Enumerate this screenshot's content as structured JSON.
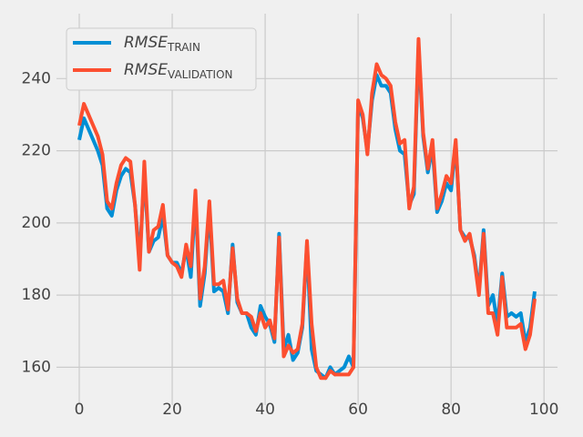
{
  "chart_data": {
    "type": "line",
    "x": [
      0,
      1,
      2,
      3,
      4,
      5,
      6,
      7,
      8,
      9,
      10,
      11,
      12,
      13,
      14,
      15,
      16,
      17,
      18,
      19,
      20,
      21,
      22,
      23,
      24,
      25,
      26,
      27,
      28,
      29,
      30,
      31,
      32,
      33,
      34,
      35,
      36,
      37,
      38,
      39,
      40,
      41,
      42,
      43,
      44,
      45,
      46,
      47,
      48,
      49,
      50,
      51,
      52,
      53,
      54,
      55,
      56,
      57,
      58,
      59,
      60,
      61,
      62,
      63,
      64,
      65,
      66,
      67,
      68,
      69,
      70,
      71,
      72,
      73,
      74,
      75,
      76,
      77,
      78,
      79,
      80,
      81,
      82,
      83,
      84,
      85,
      86,
      87,
      88,
      89,
      90,
      91,
      92,
      93,
      94,
      95,
      96,
      97,
      98
    ],
    "series": [
      {
        "name": "RMSE",
        "name_subscript": "TRAIN",
        "color": "#008fd5",
        "values": [
          223,
          229,
          226,
          223,
          220,
          216,
          204,
          202,
          209,
          213,
          215,
          214,
          205,
          190,
          214,
          192,
          195,
          196,
          202,
          191,
          189,
          189,
          186,
          193,
          185,
          207,
          177,
          186,
          204,
          181,
          182,
          181,
          175,
          194,
          178,
          175,
          175,
          171,
          169,
          177,
          174,
          172,
          167,
          197,
          165,
          169,
          162,
          164,
          171,
          194,
          165,
          159,
          158,
          157,
          160,
          158,
          159,
          160,
          163,
          160,
          233,
          229,
          220,
          234,
          241,
          238,
          238,
          236,
          226,
          220,
          219,
          205,
          208,
          249,
          224,
          214,
          221,
          203,
          206,
          211,
          209,
          222,
          198,
          196,
          196,
          191,
          181,
          198,
          177,
          180,
          172,
          186,
          174,
          175,
          174,
          175,
          167,
          171,
          181
        ]
      },
      {
        "name": "RMSE",
        "name_subscript": "VALIDATION",
        "color": "#fc4f30",
        "values": [
          227,
          233,
          230,
          227,
          224,
          219,
          206,
          204,
          211,
          216,
          218,
          217,
          205,
          187,
          217,
          192,
          198,
          199,
          205,
          191,
          189,
          188,
          185,
          194,
          188,
          209,
          179,
          188,
          206,
          183,
          183,
          184,
          176,
          193,
          179,
          175,
          175,
          174,
          170,
          175,
          171,
          173,
          168,
          196,
          163,
          166,
          164,
          165,
          172,
          195,
          172,
          160,
          157,
          157,
          159,
          158,
          158,
          158,
          158,
          160,
          234,
          230,
          219,
          236,
          244,
          241,
          240,
          238,
          228,
          222,
          223,
          204,
          210,
          251,
          225,
          215,
          223,
          204,
          208,
          213,
          211,
          223,
          198,
          195,
          197,
          190,
          180,
          197,
          175,
          175,
          169,
          185,
          171,
          171,
          171,
          172,
          165,
          169,
          179
        ]
      }
    ],
    "xlim": [
      -4.9,
      102.9
    ],
    "ylim": [
      149.5,
      258
    ],
    "xticks": [
      0,
      20,
      40,
      60,
      80,
      100
    ],
    "yticks": [
      160,
      180,
      200,
      220,
      240
    ],
    "grid": true,
    "legend": "upper left"
  }
}
